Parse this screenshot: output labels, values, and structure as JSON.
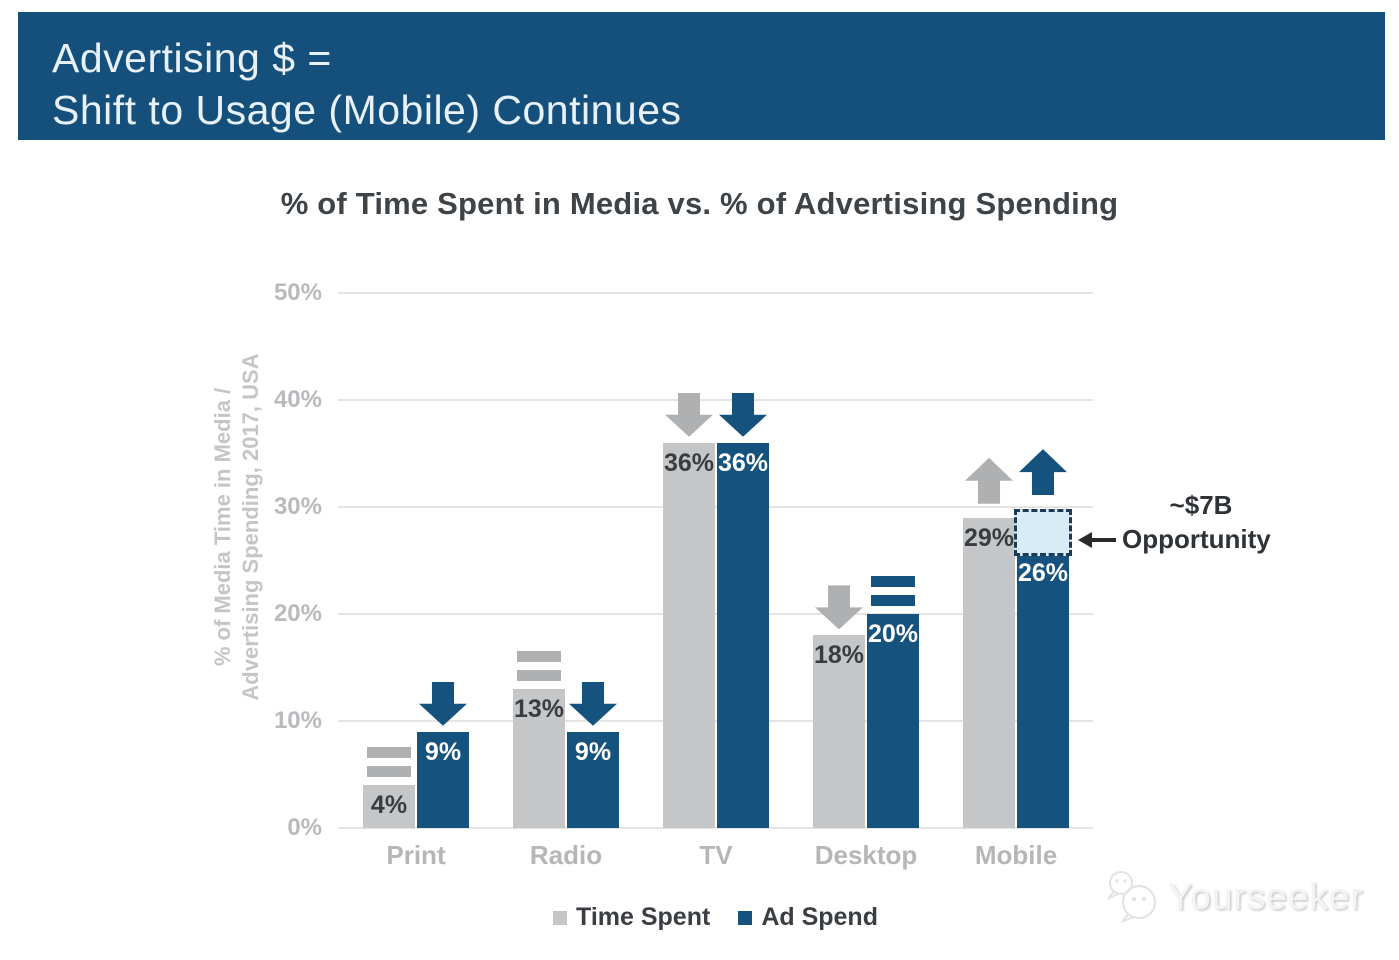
{
  "banner": {
    "title_line1": "Advertising $ =",
    "title_line2": "Shift to Usage (Mobile) Continues"
  },
  "chart_data": {
    "type": "bar",
    "title": "% of Time Spent in Media vs. % of Advertising Spending",
    "ylabel": "% of Media Time in Media / Advertising Spending, 2017, USA",
    "ylabel_line1": "% of Media Time in Media /",
    "ylabel_line2": "Advertising Spending, 2017, USA",
    "categories": [
      "Print",
      "Radio",
      "TV",
      "Desktop",
      "Mobile"
    ],
    "series": [
      {
        "name": "Time Spent",
        "color": "#C5C6C8",
        "trend_color": "#AFB0B2",
        "label_color": "#3A3D40",
        "values": [
          4,
          13,
          36,
          18,
          29
        ],
        "labels": [
          "4%",
          "13%",
          "36%",
          "18%",
          "29%"
        ],
        "trends": [
          "equal",
          "equal",
          "down",
          "down",
          "up"
        ]
      },
      {
        "name": "Ad Spend",
        "color": "#15537E",
        "trend_color": "#15537E",
        "label_color": "#FFFFFF",
        "values": [
          9,
          9,
          36,
          20,
          26
        ],
        "labels": [
          "9%",
          "9%",
          "36%",
          "20%",
          "26%"
        ],
        "trends": [
          "down",
          "down",
          "down",
          "equal",
          "up"
        ]
      }
    ],
    "y_ticks": [
      "50%",
      "40%",
      "30%",
      "20%",
      "10%",
      "0%"
    ],
    "ylim": [
      0,
      50
    ],
    "grid": true,
    "legend_position": "bottom",
    "annotation": {
      "line1": "~$7B",
      "line2": "Opportunity",
      "target_category": "Mobile",
      "target_series": "Ad Spend",
      "box_from_pct": 26,
      "box_to_pct": 29.8,
      "box_fill": "#D8ECF7",
      "box_border": "#1B3A57",
      "arrow_color": "#2A2A2A"
    }
  },
  "legend": {
    "items": [
      {
        "label": "Time Spent",
        "color": "#C5C6C8"
      },
      {
        "label": "Ad Spend",
        "color": "#15537E"
      }
    ]
  },
  "watermark": {
    "text": "Yourseeker"
  },
  "colors": {
    "banner_bg": "#14507B",
    "banner_text": "#E8F1F8",
    "title_text": "#3E4348",
    "axis_text": "#B9BABD",
    "gridline": "#E4E4E4",
    "background": "#FFFFFF"
  }
}
